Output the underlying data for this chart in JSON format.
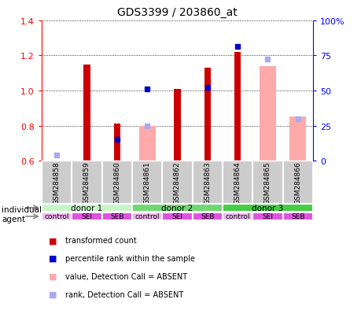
{
  "title": "GDS3399 / 203860_at",
  "samples": [
    "GSM284858",
    "GSM284859",
    "GSM284860",
    "GSM284861",
    "GSM284862",
    "GSM284863",
    "GSM284864",
    "GSM284865",
    "GSM284866"
  ],
  "red_bars": [
    null,
    1.15,
    0.81,
    null,
    1.01,
    1.13,
    1.22,
    null,
    null
  ],
  "blue_markers": [
    null,
    null,
    0.72,
    1.01,
    null,
    1.02,
    1.25,
    null,
    null
  ],
  "pink_bars": [
    null,
    null,
    null,
    0.8,
    null,
    null,
    null,
    1.14,
    0.85
  ],
  "light_blue_markers": [
    0.63,
    null,
    null,
    0.8,
    null,
    null,
    null,
    1.18,
    0.84
  ],
  "ylim": [
    0.6,
    1.4
  ],
  "yticks_left": [
    0.6,
    0.8,
    1.0,
    1.2,
    1.4
  ],
  "yticks_right": [
    0,
    25,
    50,
    75,
    100
  ],
  "ytick_labels_right": [
    "0",
    "25",
    "50",
    "75",
    "100%"
  ],
  "ybase": 0.6,
  "donors": [
    {
      "label": "donor 1",
      "start": 0,
      "end": 3,
      "color": "#c8f5c8"
    },
    {
      "label": "donor 2",
      "start": 3,
      "end": 6,
      "color": "#70d870"
    },
    {
      "label": "donor 3",
      "start": 6,
      "end": 9,
      "color": "#44cc44"
    }
  ],
  "agents": [
    "control",
    "SEI",
    "SEB",
    "control",
    "SEI",
    "SEB",
    "control",
    "SEI",
    "SEB"
  ],
  "agent_colors": [
    "#f0b8f0",
    "#dd55dd",
    "#dd55dd",
    "#f0b8f0",
    "#dd55dd",
    "#dd55dd",
    "#f0b8f0",
    "#dd55dd",
    "#dd55dd"
  ],
  "red_color": "#cc0000",
  "blue_color": "#0000cc",
  "pink_color": "#ffaaaa",
  "light_blue_color": "#aaaaee",
  "bg_color": "#ffffff",
  "sample_bg_color": "#cccccc",
  "legend_items": [
    [
      "#cc0000",
      "transformed count"
    ],
    [
      "#0000cc",
      "percentile rank within the sample"
    ],
    [
      "#ffaaaa",
      "value, Detection Call = ABSENT"
    ],
    [
      "#aaaaee",
      "rank, Detection Call = ABSENT"
    ]
  ]
}
